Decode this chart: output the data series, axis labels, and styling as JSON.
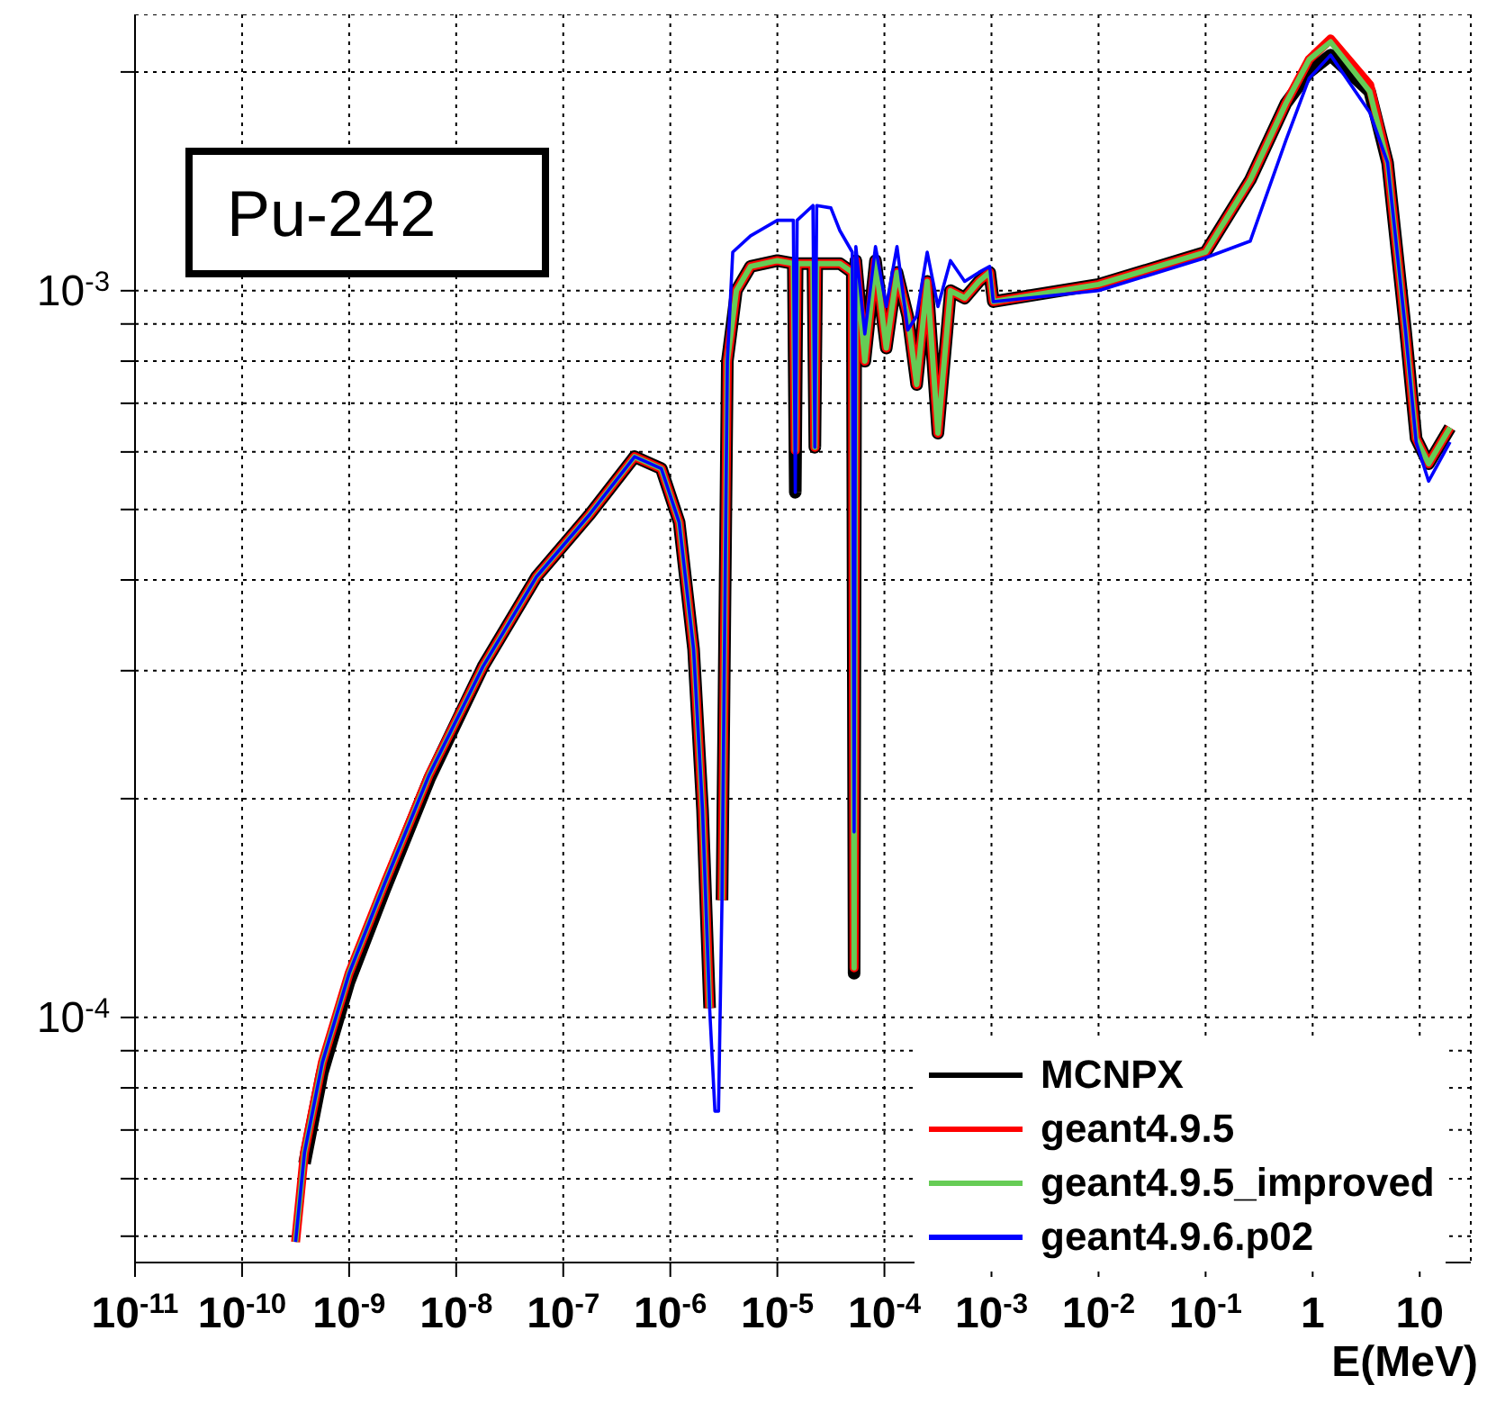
{
  "chart_data": {
    "type": "line",
    "xlabel": "E(MeV)",
    "annotations": [
      "Pu-242"
    ],
    "log": "xy",
    "grid": true,
    "legend": "bottom right",
    "marker": "none",
    "line_style": "solid",
    "xlim": [
      1e-11,
      30
    ],
    "xticks": [
      {
        "value": 1e-11,
        "label": "10$^{-11}$"
      },
      {
        "value": 1e-10,
        "label": "10$^{-10}$"
      },
      {
        "value": 1e-09,
        "label": "10$^{-9}$"
      },
      {
        "value": 1e-08,
        "label": "10$^{-8}$"
      },
      {
        "value": 1e-07,
        "label": "10$^{-7}$"
      },
      {
        "value": 1e-06,
        "label": "10$^{-6}$"
      },
      {
        "value": 1e-05,
        "label": "10$^{-5}$"
      },
      {
        "value": 0.0001,
        "label": "10$^{-4}$"
      },
      {
        "value": 0.001,
        "label": "10$^{-3}$"
      },
      {
        "value": 0.01,
        "label": "10$^{-2}$"
      },
      {
        "value": 0.1,
        "label": "10$^{-1}$"
      },
      1,
      10
    ],
    "ylim": [
      4.6e-05,
      0.0024
    ],
    "yticks": [
      {
        "value": 5e-05,
        "label": null
      },
      {
        "value": 6e-05,
        "label": null
      },
      {
        "value": 7e-05,
        "label": null
      },
      {
        "value": 8e-05,
        "label": null
      },
      {
        "value": 9e-05,
        "label": null
      },
      {
        "value": 0.0001,
        "label": "10$^{-4}$"
      },
      {
        "value": 0.0002,
        "label": null
      },
      {
        "value": 0.0003,
        "label": null
      },
      {
        "value": 0.0004,
        "label": null
      },
      {
        "value": 0.0005,
        "label": null
      },
      {
        "value": 0.0006,
        "label": null
      },
      {
        "value": 0.0007,
        "label": null
      },
      {
        "value": 0.0008,
        "label": null
      },
      {
        "value": 0.0009,
        "label": null
      },
      {
        "value": 0.001,
        "label": "10$^{-3}$"
      },
      {
        "value": 0.002,
        "label": null
      }
    ],
    "series": [
      {
        "name": "MCNPX",
        "color": "#000000",
        "x": [
          3.83e-10,
          5.62e-10,
          1e-09,
          2.15e-09,
          5.62e-09,
          1.78e-08,
          5.62e-08,
          1.78e-07,
          4.64e-07,
          8.25e-07,
          1.21e-06,
          1.65e-06,
          2e-06,
          2.33e-06,
          2.61e-06,
          2.82e-06,
          3.04e-06,
          3.41e-06,
          4.14e-06,
          5.62e-06,
          1e-05,
          1.41e-05,
          1.47e-05,
          1.53e-05,
          2.15e-05,
          2.24e-05,
          2.33e-05,
          3.83e-05,
          5.01e-05,
          5.21e-05,
          5.41e-05,
          6.56e-05,
          8.25e-05,
          0.000104,
          0.000131,
          0.000165,
          0.0002,
          0.000251,
          0.000316,
          0.000414,
          0.000562,
          0.000764,
          0.000962,
          0.00104,
          0.01,
          0.1,
          0.261,
          0.562,
          0.927,
          1.47,
          3.41,
          5.01,
          7.36,
          9.26,
          12.1,
          19.2
        ],
        "values": [
          6.3e-05,
          8.4e-05,
          0.000112,
          0.00015,
          0.000213,
          0.000304,
          0.000404,
          0.000493,
          0.000591,
          0.000569,
          0.00048,
          0.000321,
          0.000193,
          0.000103,
          null,
          null,
          0.000145,
          0.0008,
          0.001,
          0.00108,
          0.0011,
          0.00109,
          0.000528,
          0.00109,
          0.00109,
          0.000609,
          0.00109,
          0.00109,
          0.00106,
          0.000115,
          0.0011,
          0.0008,
          0.0011,
          0.000834,
          0.00106,
          0.000923,
          0.000743,
          0.00103,
          0.000637,
          0.001,
          0.000977,
          0.00103,
          0.00106,
          0.000966,
          0.00102,
          0.00113,
          0.00142,
          0.00181,
          0.002,
          0.00211,
          0.00188,
          0.0015,
          0.000883,
          0.000626,
          0.000578,
          0.000648
        ]
      },
      {
        "name": "geant4.9.5",
        "color": "#ff0000",
        "x": [
          3.16e-10,
          3.83e-10,
          5.62e-10,
          1e-09,
          2.15e-09,
          5.62e-09,
          1.78e-08,
          5.62e-08,
          1.78e-07,
          4.64e-07,
          8.25e-07,
          1.21e-06,
          1.65e-06,
          2e-06,
          2.33e-06,
          2.61e-06,
          2.82e-06,
          3.04e-06,
          3.41e-06,
          4.14e-06,
          5.62e-06,
          1e-05,
          1.41e-05,
          1.47e-05,
          1.53e-05,
          2.15e-05,
          2.24e-05,
          2.33e-05,
          3.83e-05,
          5.01e-05,
          5.21e-05,
          5.41e-05,
          6.56e-05,
          8.25e-05,
          0.000104,
          0.000131,
          0.000165,
          0.0002,
          0.000251,
          0.000316,
          0.000414,
          0.000562,
          0.000764,
          0.000962,
          0.00104,
          0.01,
          0.1,
          0.261,
          0.562,
          0.927,
          1.47,
          3.41,
          5.01,
          7.36,
          9.26,
          12.1,
          19.2
        ],
        "values": [
          4.91e-05,
          6.52e-05,
          8.67e-05,
          0.000115,
          0.000153,
          0.000216,
          0.000304,
          0.000404,
          0.000493,
          0.000591,
          0.000569,
          0.00048,
          0.000321,
          0.000193,
          0.000103,
          null,
          null,
          0.000145,
          0.0008,
          0.001,
          0.00108,
          0.0011,
          0.00109,
          0.000603,
          0.00109,
          0.00109,
          0.000609,
          0.00109,
          0.00109,
          0.00106,
          0.000117,
          0.0011,
          0.0008,
          0.0011,
          0.000834,
          0.00106,
          0.000923,
          0.000743,
          0.00103,
          0.000637,
          0.001,
          0.000977,
          0.00103,
          0.00106,
          0.000966,
          0.00102,
          0.00113,
          0.00142,
          0.00181,
          0.00208,
          0.00222,
          0.00192,
          0.0015,
          0.000883,
          0.000626,
          0.000578,
          0.000648
        ]
      },
      {
        "name": "geant4.9.5_improved",
        "color": "#66cc55",
        "x": [
          3.16e-10,
          3.83e-10,
          5.62e-10,
          1e-09,
          2.15e-09,
          5.62e-09,
          1.78e-08,
          5.62e-08,
          1.78e-07,
          4.64e-07,
          8.25e-07,
          1.21e-06,
          1.65e-06,
          2e-06,
          2.33e-06,
          2.61e-06,
          2.82e-06,
          3.04e-06,
          3.41e-06,
          4.14e-06,
          5.62e-06,
          1e-05,
          1.41e-05,
          1.47e-05,
          1.53e-05,
          2.15e-05,
          2.24e-05,
          2.33e-05,
          3.83e-05,
          5.01e-05,
          5.21e-05,
          5.41e-05,
          6.56e-05,
          8.25e-05,
          0.000104,
          0.000131,
          0.000165,
          0.0002,
          0.000251,
          0.000316,
          0.000414,
          0.000562,
          0.000764,
          0.000962,
          0.00104,
          0.01,
          0.1,
          0.261,
          0.562,
          0.927,
          1.47,
          3.41,
          5.01,
          7.36,
          9.26,
          12.1,
          19.2
        ],
        "values": [
          4.91e-05,
          6.52e-05,
          8.67e-05,
          0.000115,
          0.000153,
          0.000216,
          0.000304,
          0.000404,
          0.000493,
          0.000591,
          0.000569,
          0.00048,
          0.000321,
          0.000193,
          0.000103,
          null,
          null,
          0.000145,
          0.0008,
          0.001,
          0.00108,
          0.0011,
          0.00109,
          0.000603,
          0.00109,
          0.00109,
          0.000609,
          0.00109,
          0.00109,
          0.00106,
          0.000117,
          0.0011,
          0.0008,
          0.0011,
          0.000834,
          0.00106,
          0.000923,
          0.000743,
          0.00103,
          0.000637,
          0.001,
          0.000977,
          0.00103,
          0.00106,
          0.000966,
          0.00102,
          0.00113,
          0.00142,
          0.00181,
          0.00208,
          0.0022,
          0.00188,
          0.0015,
          0.000883,
          0.000626,
          0.000578,
          0.000648
        ]
      },
      {
        "name": "geant4.9.6.p02",
        "color": "#0000ff",
        "x": [
          3.16e-10,
          3.83e-10,
          5.62e-10,
          1e-09,
          2.15e-09,
          5.62e-09,
          1.78e-08,
          5.62e-08,
          1.78e-07,
          4.64e-07,
          8.25e-07,
          1.21e-06,
          1.65e-06,
          2e-06,
          2.33e-06,
          2.61e-06,
          2.82e-06,
          3.04e-06,
          3.41e-06,
          3.83e-06,
          5.62e-06,
          1e-05,
          1.41e-05,
          1.47e-05,
          1.53e-05,
          2.15e-05,
          2.24e-05,
          2.33e-05,
          3.16e-05,
          3.83e-05,
          5.01e-05,
          5.21e-05,
          5.41e-05,
          6.56e-05,
          8.25e-05,
          0.000104,
          0.000131,
          0.000165,
          0.0002,
          0.000251,
          0.000316,
          0.000414,
          0.000562,
          0.000764,
          0.000962,
          0.00104,
          0.01,
          0.1,
          0.261,
          0.562,
          0.927,
          1.47,
          3.41,
          5.01,
          7.36,
          9.26,
          12.1,
          19.2
        ],
        "values": [
          4.91e-05,
          6.52e-05,
          8.67e-05,
          0.000115,
          0.000153,
          0.000216,
          0.000304,
          0.000404,
          0.000493,
          0.000591,
          0.000569,
          0.00048,
          0.000321,
          0.000193,
          0.000103,
          7.43e-05,
          7.43e-05,
          0.000145,
          0.0008,
          0.00113,
          0.00119,
          0.00125,
          0.00125,
          0.000528,
          0.00125,
          0.00131,
          0.000609,
          0.00131,
          0.0013,
          0.00121,
          0.00113,
          0.00018,
          0.00115,
          0.000872,
          0.00115,
          0.000951,
          0.00115,
          0.000883,
          0.000923,
          0.00113,
          0.000951,
          0.0011,
          0.00103,
          0.00106,
          0.00108,
          0.000966,
          0.001,
          0.00111,
          0.00117,
          0.00161,
          0.00196,
          0.00211,
          0.00176,
          0.0015,
          0.000883,
          0.000619,
          0.000547,
          0.000619
        ]
      }
    ]
  }
}
